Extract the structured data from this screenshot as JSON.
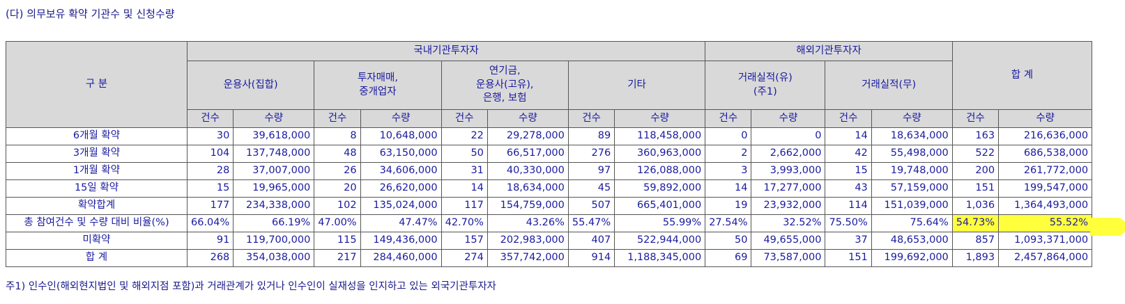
{
  "title": "(다) 의무보유 확약 기관수 및 신청수량",
  "headers": {
    "category": "구  분",
    "domestic": "국내기관투자자",
    "foreign": "해외기관투자자",
    "total": "합 계",
    "groups": [
      "운용사(집합)",
      "투자매매,\n중개업자",
      "연기금,\n운용사(고유),\n은행, 보험",
      "기타",
      "거래실적(유)\n(주1)",
      "거래실적(무)"
    ],
    "count": "건수",
    "quantity": "수량"
  },
  "rows": [
    {
      "label": "6개월 확약",
      "cells": [
        "30",
        "39,618,000",
        "8",
        "10,648,000",
        "22",
        "29,278,000",
        "89",
        "118,458,000",
        "0",
        "0",
        "14",
        "18,634,000",
        "163",
        "216,636,000"
      ]
    },
    {
      "label": "3개월 확약",
      "cells": [
        "104",
        "137,748,000",
        "48",
        "63,150,000",
        "50",
        "66,517,000",
        "276",
        "360,963,000",
        "2",
        "2,662,000",
        "42",
        "55,498,000",
        "522",
        "686,538,000"
      ]
    },
    {
      "label": "1개월 확약",
      "cells": [
        "28",
        "37,007,000",
        "26",
        "34,606,000",
        "31",
        "40,330,000",
        "97",
        "126,088,000",
        "3",
        "3,993,000",
        "15",
        "19,748,000",
        "200",
        "261,772,000"
      ]
    },
    {
      "label": "15일 확약",
      "cells": [
        "15",
        "19,965,000",
        "20",
        "26,620,000",
        "14",
        "18,634,000",
        "45",
        "59,892,000",
        "14",
        "17,277,000",
        "43",
        "57,159,000",
        "151",
        "199,547,000"
      ]
    },
    {
      "label": "확약합계",
      "cells": [
        "177",
        "234,338,000",
        "102",
        "135,024,000",
        "117",
        "154,759,000",
        "507",
        "665,401,000",
        "19",
        "23,932,000",
        "114",
        "151,039,000",
        "1,036",
        "1,364,493,000"
      ]
    },
    {
      "label": "총 참여건수 및 수량 대비 비율(%)",
      "cells": [
        "66.04%",
        "66.19%",
        "47.00%",
        "47.47%",
        "42.70%",
        "43.26%",
        "55.47%",
        "55.99%",
        "27.54%",
        "32.52%",
        "75.50%",
        "75.64%",
        "54.73%",
        "55.52%"
      ]
    },
    {
      "label": "미확약",
      "cells": [
        "91",
        "119,700,000",
        "115",
        "149,436,000",
        "157",
        "202,983,000",
        "407",
        "522,944,000",
        "50",
        "49,655,000",
        "37",
        "48,653,000",
        "857",
        "1,093,371,000"
      ]
    },
    {
      "label": "합  계",
      "cells": [
        "268",
        "354,038,000",
        "217",
        "284,460,000",
        "274",
        "357,742,000",
        "914",
        "1,188,345,000",
        "69",
        "73,587,000",
        "151",
        "199,692,000",
        "1,893",
        "2,457,864,000"
      ]
    }
  ],
  "highlight_color": "#ffff3c",
  "footnote": "주1) 인수인(해외현지법인 및 해외지점 포함)과 거래관계가 있거나 인수인이 실재성을 인지하고 있는 외국기관투자자"
}
